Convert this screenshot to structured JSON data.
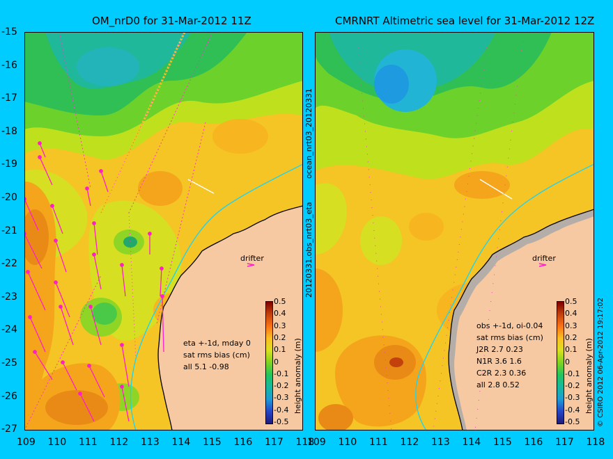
{
  "left_panel": {
    "title": "OM_nrD0 for 31-Mar-2012 11Z",
    "legend_lines": [
      "eta +-1d, mday 0",
      "sat rms bias (cm)",
      "all 5.1 -0.98"
    ],
    "drifter_label": "drifter"
  },
  "right_panel": {
    "title": "CMRNRT Altimetric sea level  for 31-Mar-2012 12Z",
    "legend_lines": [
      "obs +-1d, oi-0.04",
      "sat rms bias (cm)",
      "J2R   2.7 0.23",
      "N1R   3.6 1.6",
      "C2R   2.3 0.36",
      "all 2.8 0.52"
    ],
    "drifter_label": "drifter"
  },
  "y_ticks": [
    "-15",
    "-16",
    "-17",
    "-18",
    "-19",
    "-20",
    "-21",
    "-22",
    "-23",
    "-24",
    "-25",
    "-26",
    "-27"
  ],
  "x_ticks_left": [
    "109",
    "110",
    "111",
    "112",
    "113",
    "114",
    "115",
    "116",
    "117",
    "118"
  ],
  "x_ticks_right": [
    "109",
    "110",
    "111",
    "112",
    "113",
    "114",
    "115",
    "116",
    "117",
    "118"
  ],
  "colorbar": {
    "ticks": [
      "0.5",
      "0.4",
      "0.3",
      "0.2",
      "0.1",
      "0",
      "-0.1",
      "-0.2",
      "-0.3",
      "-0.4",
      "-0.5"
    ],
    "label": "height anomaly (m)",
    "colors": [
      "#7f0000",
      "#c2410c",
      "#f97316",
      "#fbbf24",
      "#d9e021",
      "#7fd321",
      "#22c55e",
      "#16b8a0",
      "#1d9bd6",
      "#2545c8",
      "#1e1b7a"
    ]
  },
  "side_labels": {
    "middle_top": "ocean_nrt03_20120331",
    "middle_bottom": "20120331.obs_nrt03_eta",
    "right_edge": "© CSIRO 2012   06-Apr-2012 19:17:02"
  }
}
